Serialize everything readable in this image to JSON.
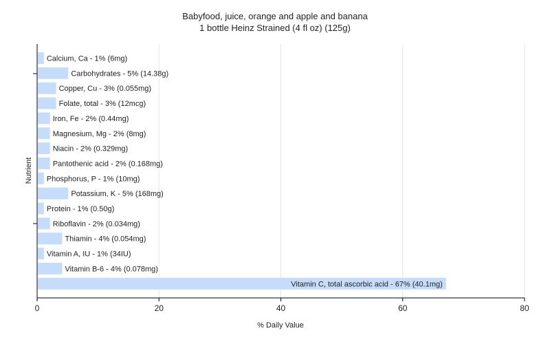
{
  "chart_data": {
    "type": "bar",
    "orientation": "horizontal",
    "title": "Babyfood, juice, orange and apple and banana",
    "subtitle": "1 bottle Heinz Strained (4 fl oz) (125g)",
    "xlabel": "% Daily Value",
    "ylabel": "Nutrient",
    "xlim": [
      0,
      80
    ],
    "xticks": [
      "0",
      "20",
      "40",
      "60",
      "80"
    ],
    "grid": "vertical",
    "colors": {
      "bar": "#c6dcfb",
      "grid": "#e6e6e6",
      "axis": "#000000"
    },
    "categories": [
      "Calcium, Ca",
      "Carbohydrates",
      "Copper, Cu",
      "Folate, total",
      "Iron, Fe",
      "Magnesium, Mg",
      "Niacin",
      "Pantothenic acid",
      "Phosphorus, P",
      "Potassium, K",
      "Protein",
      "Riboflavin",
      "Thiamin",
      "Vitamin A, IU",
      "Vitamin B-6",
      "Vitamin C, total ascorbic acid"
    ],
    "values": [
      1,
      5,
      3,
      3,
      2,
      2,
      2,
      2,
      1,
      5,
      1,
      2,
      4,
      1,
      4,
      67
    ],
    "labels": [
      "Calcium, Ca - 1% (6mg)",
      "Carbohydrates - 5% (14.38g)",
      "Copper, Cu - 3% (0.055mg)",
      "Folate, total - 3% (12mcg)",
      "Iron, Fe - 2% (0.44mg)",
      "Magnesium, Mg - 2% (8mg)",
      "Niacin - 2% (0.329mg)",
      "Pantothenic acid - 2% (0.168mg)",
      "Phosphorus, P - 1% (10mg)",
      "Potassium, K - 5% (168mg)",
      "Protein - 1% (0.50g)",
      "Riboflavin - 2% (0.034mg)",
      "Thiamin - 4% (0.054mg)",
      "Vitamin A, IU - 1% (34IU)",
      "Vitamin B-6 - 4% (0.078mg)",
      "Vitamin C, total ascorbic acid - 67% (40.1mg)"
    ]
  }
}
